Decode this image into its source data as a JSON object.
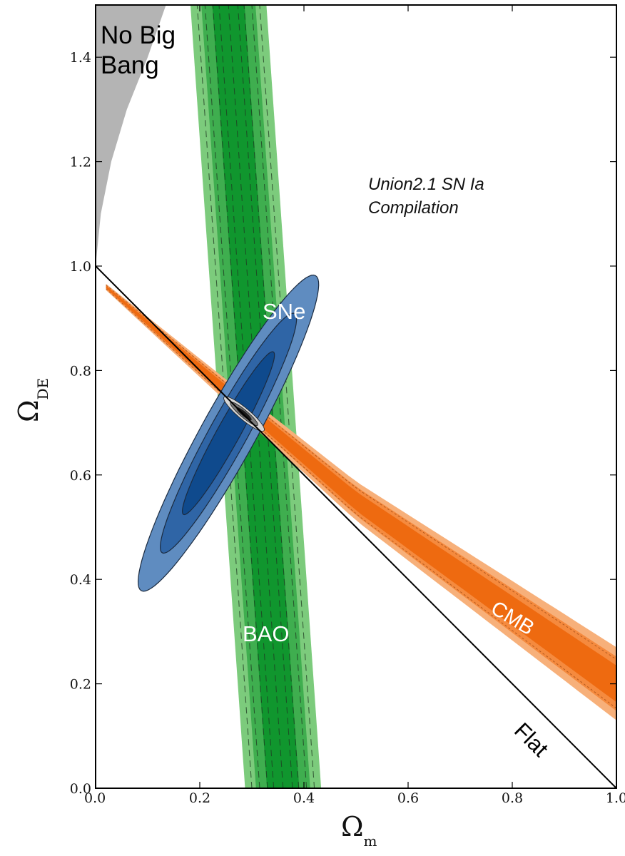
{
  "chart_data": {
    "type": "contour",
    "title": "",
    "xlabel": "Ω",
    "xlabel_sub": "m",
    "ylabel": "Ω",
    "ylabel_sub": "DE",
    "xlim": [
      0.0,
      1.0
    ],
    "ylim": [
      0.0,
      1.5
    ],
    "x_ticks": [
      {
        "value": 0.0,
        "label": "0.0"
      },
      {
        "value": 0.2,
        "label": "0.2"
      },
      {
        "value": 0.4,
        "label": "0.4"
      },
      {
        "value": 0.6,
        "label": "0.6"
      },
      {
        "value": 0.8,
        "label": "0.8"
      },
      {
        "value": 1.0,
        "label": "1.0"
      }
    ],
    "y_ticks": [
      {
        "value": 0.0,
        "label": "0.0"
      },
      {
        "value": 0.2,
        "label": "0.2"
      },
      {
        "value": 0.4,
        "label": "0.4"
      },
      {
        "value": 0.6,
        "label": "0.6"
      },
      {
        "value": 0.8,
        "label": "0.8"
      },
      {
        "value": 1.0,
        "label": "1.0"
      },
      {
        "value": 1.2,
        "label": "1.2"
      },
      {
        "value": 1.4,
        "label": "1.4"
      }
    ],
    "regions": {
      "no_big_bang": {
        "label_line1": "No Big",
        "label_line2": "Bang",
        "color": "#b4b4b4",
        "boundary": [
          [
            0.0,
            1.0
          ],
          [
            0.01,
            1.1
          ],
          [
            0.03,
            1.2
          ],
          [
            0.06,
            1.3
          ],
          [
            0.1,
            1.4
          ],
          [
            0.135,
            1.5
          ]
        ]
      },
      "flat_line": {
        "label": "Flat",
        "from": [
          0.0,
          1.0
        ],
        "to": [
          1.0,
          0.0
        ]
      },
      "sne": {
        "label": "SNe",
        "annotation_line1": "Union2.1 SN Ia",
        "annotation_line2": "Compilation",
        "colors": [
          "#5f8cc0",
          "#2f65a6",
          "#0f4a8d"
        ],
        "center": [
          0.255,
          0.68
        ],
        "angle_deg": 61,
        "contours": [
          {
            "level": "3 sigma",
            "a": 0.345,
            "b": 0.052
          },
          {
            "level": "2 sigma",
            "a": 0.262,
            "b": 0.036
          },
          {
            "level": "1 sigma",
            "a": 0.178,
            "b": 0.022
          }
        ]
      },
      "bao": {
        "label": "BAO",
        "colors": [
          "#7ccb7c",
          "#3fae4f",
          "#10962e"
        ],
        "centerline": [
          [
            0.36,
            0.0
          ],
          [
            0.255,
            1.5
          ]
        ],
        "half_widths": [
          0.073,
          0.052,
          0.031
        ]
      },
      "cmb": {
        "label": "CMB",
        "colors": [
          "#f7b07a",
          "#f58a3e",
          "#ee6a10"
        ],
        "centerline": [
          [
            0.02,
            0.96
          ],
          [
            0.27,
            0.745
          ],
          [
            0.5,
            0.55
          ],
          [
            1.0,
            0.2
          ]
        ],
        "widths_start": [
          0.006,
          0.004,
          0.002
        ],
        "widths_end": [
          0.07,
          0.052,
          0.035
        ]
      },
      "combined": {
        "colors": [
          "#d6d6d6",
          "#7a7a7a",
          "#1c1c1c"
        ],
        "center": [
          0.285,
          0.717
        ],
        "angle_deg": -40,
        "contours": [
          {
            "a": 0.05,
            "b": 0.011
          },
          {
            "a": 0.034,
            "b": 0.007
          },
          {
            "a": 0.018,
            "b": 0.004
          }
        ]
      }
    }
  }
}
